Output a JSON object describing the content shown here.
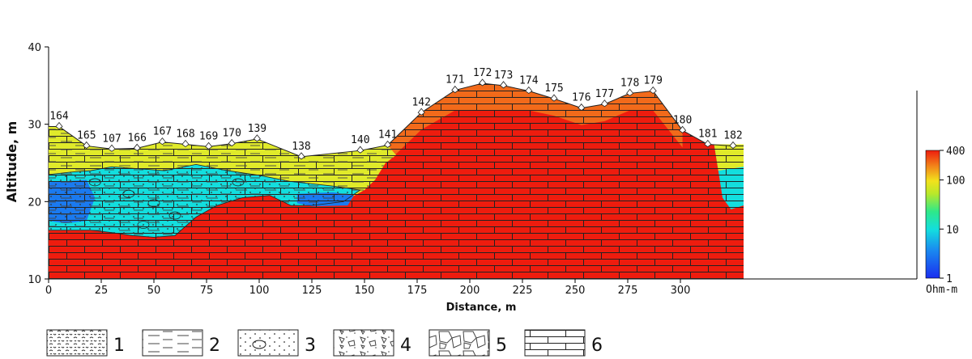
{
  "chart_data": {
    "type": "heatmap",
    "xlabel": "Distance, m",
    "ylabel": "Altitude, m",
    "xlim": [
      0,
      330
    ],
    "ylim": [
      10,
      40
    ],
    "x_ticks": [
      "0",
      "25",
      "50",
      "75",
      "100",
      "125",
      "150",
      "175",
      "200",
      "225",
      "250",
      "275",
      "300"
    ],
    "y_ticks": [
      "10",
      "20",
      "30",
      "40"
    ],
    "colorbar": {
      "unit": "Ohm-m",
      "scale": "log",
      "range": [
        1,
        400
      ],
      "tick_labels": [
        "1",
        "10",
        "100",
        "400"
      ],
      "tick_values": [
        1,
        10,
        100,
        400
      ]
    },
    "stations": [
      {
        "label": "164",
        "x": 5,
        "alt": 29.7
      },
      {
        "label": "165",
        "x": 18,
        "alt": 27.2
      },
      {
        "label": "107",
        "x": 30,
        "alt": 26.8
      },
      {
        "label": "166",
        "x": 42,
        "alt": 26.9
      },
      {
        "label": "167",
        "x": 54,
        "alt": 27.7
      },
      {
        "label": "168",
        "x": 65,
        "alt": 27.4
      },
      {
        "label": "169",
        "x": 76,
        "alt": 27.1
      },
      {
        "label": "170",
        "x": 87,
        "alt": 27.5
      },
      {
        "label": "139",
        "x": 99,
        "alt": 28.1
      },
      {
        "label": "138",
        "x": 120,
        "alt": 25.8
      },
      {
        "label": "140",
        "x": 148,
        "alt": 26.6
      },
      {
        "label": "141",
        "x": 161,
        "alt": 27.3
      },
      {
        "label": "142",
        "x": 177,
        "alt": 31.5
      },
      {
        "label": "171",
        "x": 193,
        "alt": 34.4
      },
      {
        "label": "172",
        "x": 206,
        "alt": 35.3
      },
      {
        "label": "173",
        "x": 216,
        "alt": 35.0
      },
      {
        "label": "174",
        "x": 228,
        "alt": 34.3
      },
      {
        "label": "175",
        "x": 240,
        "alt": 33.3
      },
      {
        "label": "176",
        "x": 253,
        "alt": 32.1
      },
      {
        "label": "177",
        "x": 264,
        "alt": 32.6
      },
      {
        "label": "178",
        "x": 276,
        "alt": 34.0
      },
      {
        "label": "179",
        "x": 287,
        "alt": 34.3
      },
      {
        "label": "180",
        "x": 301,
        "alt": 29.2
      },
      {
        "label": "181",
        "x": 313,
        "alt": 27.4
      },
      {
        "label": "182",
        "x": 325,
        "alt": 27.2
      }
    ],
    "lithology_legend": [
      {
        "number": "1",
        "pattern": "dense-gravel"
      },
      {
        "number": "2",
        "pattern": "dashed-clay"
      },
      {
        "number": "3",
        "pattern": "dotted-sand-with-pebbles"
      },
      {
        "number": "4",
        "pattern": "angular-debris"
      },
      {
        "number": "5",
        "pattern": "boulders"
      },
      {
        "number": "6",
        "pattern": "limestone-brick"
      }
    ],
    "colors": {
      "high": "#ee1c0e",
      "mid_orange": "#f26a1a",
      "yellow": "#e0ea2a",
      "yellow_green": "#c7e62a",
      "cyan": "#13dede",
      "blue": "#1a7af0"
    }
  }
}
